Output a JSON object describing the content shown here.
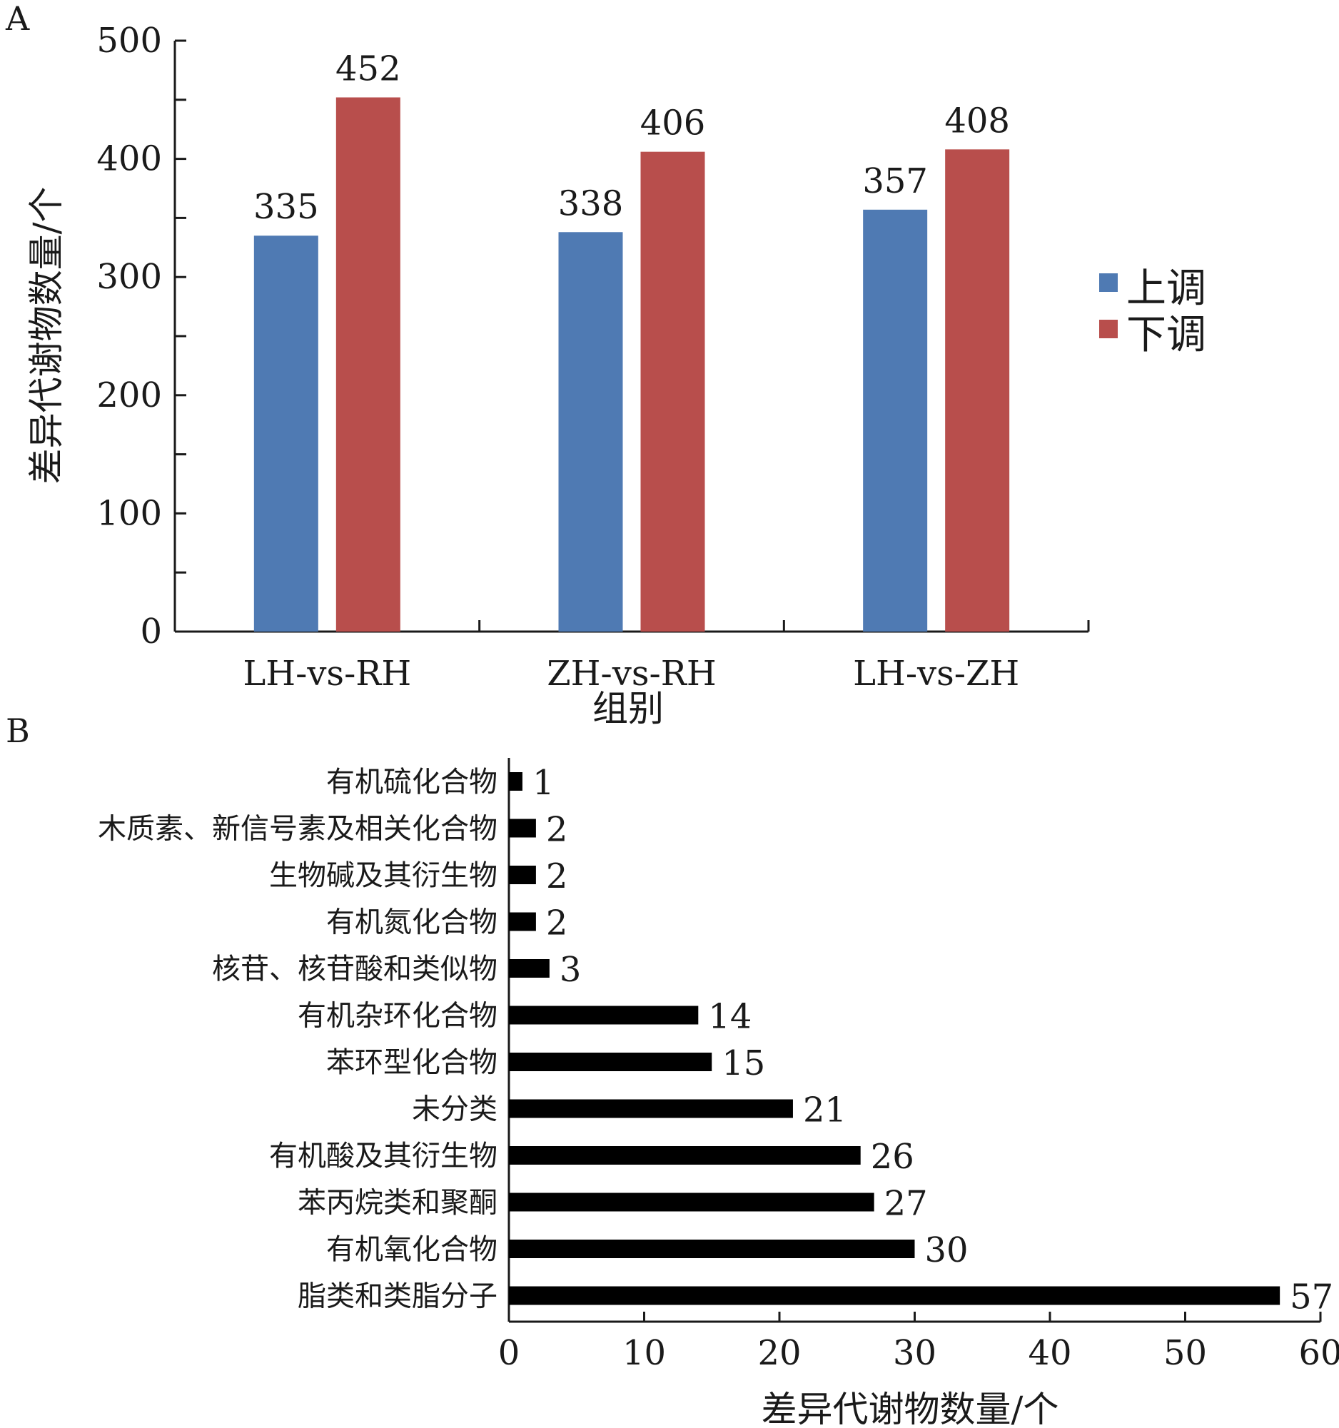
{
  "chart_data": [
    {
      "panel": "A",
      "type": "bar",
      "categories": [
        "LH-vs-RH",
        "ZH-vs-RH",
        "LH-vs-ZH"
      ],
      "series": [
        {
          "name": "上调",
          "color": "#4f7ab3",
          "values": [
            335,
            338,
            357
          ]
        },
        {
          "name": "下调",
          "color": "#b84e4c",
          "values": [
            452,
            406,
            408
          ]
        }
      ],
      "xlabel": "组别",
      "ylabel": "差异代谢物数量/个",
      "ylim": [
        0,
        500
      ],
      "yticks": [
        "0",
        "100",
        "200",
        "300",
        "400",
        "500"
      ],
      "legend_position": "right",
      "grid": false
    },
    {
      "panel": "B",
      "type": "bar",
      "orientation": "horizontal",
      "categories": [
        "有机硫化合物",
        "木质素、新信号素及相关化合物",
        "生物碱及其衍生物",
        "有机氮化合物",
        "核苷、核苷酸和类似物",
        "有机杂环化合物",
        "苯环型化合物",
        "未分类",
        "有机酸及其衍生物",
        "苯丙烷类和聚酮",
        "有机氧化合物",
        "脂类和类脂分子"
      ],
      "values": [
        1,
        2,
        2,
        2,
        3,
        14,
        15,
        21,
        26,
        27,
        30,
        57
      ],
      "color": "#000000",
      "xlabel": "差异代谢物数量/个",
      "xlim": [
        0,
        60
      ],
      "xticks": [
        "0",
        "10",
        "20",
        "30",
        "40",
        "50",
        "60"
      ],
      "grid": false
    }
  ]
}
